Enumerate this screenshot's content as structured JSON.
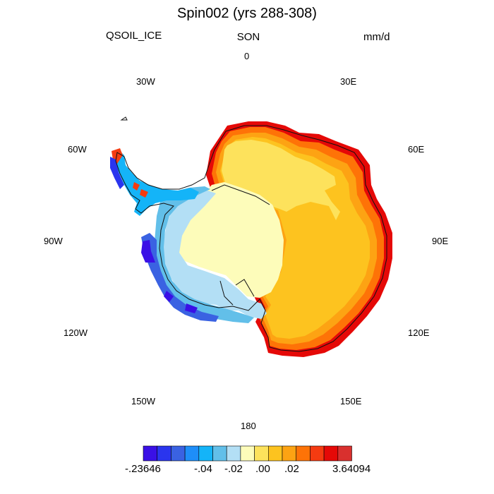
{
  "title": "Spin002 (yrs 288-308)",
  "variable": "QSOIL_ICE",
  "season": "SON",
  "units": "mm/d",
  "longitude_labels": {
    "lon_0": "0",
    "lon_30e": "30E",
    "lon_60e": "60E",
    "lon_90e": "90E",
    "lon_120e": "120E",
    "lon_150e": "150E",
    "lon_180": "180",
    "lon_150w": "150W",
    "lon_120w": "120W",
    "lon_90w": "90W",
    "lon_60w": "60W",
    "lon_30w": "30W"
  },
  "colorbar": {
    "colors": [
      "#3a10e6",
      "#2a35ee",
      "#3a62e2",
      "#1e8ef9",
      "#14b4f8",
      "#62bfe9",
      "#b3dff5",
      "#fdfcba",
      "#fde25c",
      "#fdc31f",
      "#fda313",
      "#fe7307",
      "#f53b11",
      "#e50907",
      "#d9302e"
    ],
    "labels": {
      "min": "-.23646",
      "l1": "-.04",
      "l2": "-.02",
      "l3": ".00",
      "l4": ".02",
      "max": "3.64094"
    }
  }
}
